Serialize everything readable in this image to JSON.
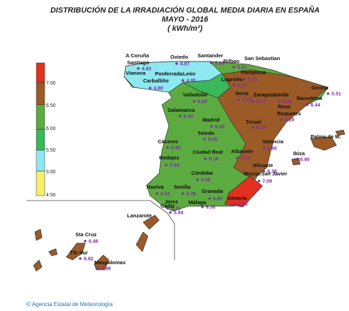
{
  "title": [
    "DISTRIBUCIÓN DE LA IRRADIACIÓN GLOBAL MEDIA DIARIA EN  ESPAÑA",
    "MAYO - 2016",
    "( kWh/m²)"
  ],
  "legend": {
    "levels": [
      "7.00",
      "6.50",
      "6.00",
      "5.50",
      "5.00",
      "4.50"
    ]
  },
  "stations": [
    {
      "name": "A Coruña"
    },
    {
      "name": "Santiago",
      "value": "4.83"
    },
    {
      "name": "Oviedo",
      "value": "4.97"
    },
    {
      "name": "Santander",
      "value": "5.09"
    },
    {
      "name": "Bilbao",
      "value": "5.21"
    },
    {
      "name": "San Sebastian"
    },
    {
      "name": "Pamplona",
      "value": "5.51"
    },
    {
      "name": "Logroño",
      "value": "5.37"
    },
    {
      "name": "Vianova"
    },
    {
      "name": "Ponferrada"
    },
    {
      "name": "León",
      "value": "4.95"
    },
    {
      "name": "Carballiño",
      "value": "4.80"
    },
    {
      "name": "Valladolid",
      "value": "6.29"
    },
    {
      "name": "Soria",
      "value": "6.15"
    },
    {
      "name": "Zaragoza",
      "value": "6.77"
    },
    {
      "name": "Lleida",
      "value": "6.66"
    },
    {
      "name": "Girona",
      "value": "5.51"
    },
    {
      "name": "Barcelona",
      "value": "6.44"
    },
    {
      "name": "Reus"
    },
    {
      "name": "Roquetes",
      "value": "6.29"
    },
    {
      "name": "Salamanca",
      "value": "6.40"
    },
    {
      "name": "Madrid",
      "value": "6.00"
    },
    {
      "name": "Teruel",
      "value": "6.10"
    },
    {
      "name": "Toledo",
      "value": "6.00"
    },
    {
      "name": "Cáceres",
      "value": "6.20"
    },
    {
      "name": "Valencia",
      "value": "6.60"
    },
    {
      "name": "Ciudad Real",
      "value": "6.16"
    },
    {
      "name": "Albacete",
      "value": "6.51"
    },
    {
      "name": "Palma de M."
    },
    {
      "name": "Ibiza",
      "value": "6.90"
    },
    {
      "name": "Badajoz",
      "value": "5.94"
    },
    {
      "name": "Alicante",
      "value": "6.38"
    },
    {
      "name": "Córdoba",
      "value": "6.06"
    },
    {
      "name": "Murcia"
    },
    {
      "name": "San Javier",
      "value": "7.09"
    },
    {
      "name": "Huelva",
      "value": "6.24"
    },
    {
      "name": "Sevilla",
      "value": "6.28"
    },
    {
      "name": "Granada",
      "value": "6.60"
    },
    {
      "name": "Almería",
      "value": "6.24"
    },
    {
      "name": "Jerez",
      "value": "5.71"
    },
    {
      "name": "Cádiz",
      "value": "5.94"
    },
    {
      "name": "Málaga",
      "value": "6.30"
    },
    {
      "name": "Lanzarote"
    },
    {
      "name": "Sta Cruz",
      "value": "6.46"
    },
    {
      "name": "Tfe Sur",
      "value": "6.82"
    },
    {
      "name": "Maspalomas",
      "value": "5.99"
    }
  ],
  "footer": "© Agencia Estatal de Meteorología"
}
